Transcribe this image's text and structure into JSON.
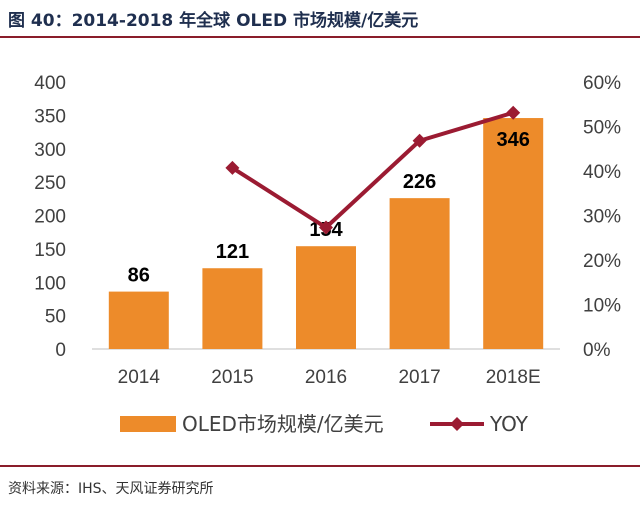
{
  "header": {
    "title": "图 40：2014-2018 年全球 OLED 市场规模/亿美元"
  },
  "footer": {
    "source": "资料来源：IHS、天风证券研究所"
  },
  "colors": {
    "bar": "#ED8B2A",
    "line": "#9B1B32",
    "rule": "#8A1D2A"
  },
  "chart_data": {
    "type": "bar",
    "categories": [
      "2014",
      "2015",
      "2016",
      "2017",
      "2018E"
    ],
    "series": [
      {
        "name": "OLED市场规模/亿美元",
        "type": "bar",
        "axis": "left",
        "values": [
          86,
          121,
          154,
          226,
          346
        ],
        "labels": [
          "86",
          "121",
          "154",
          "226",
          "346"
        ]
      },
      {
        "name": "YOY",
        "type": "line",
        "axis": "right",
        "values": [
          null,
          0.407,
          0.273,
          0.468,
          0.531
        ]
      }
    ],
    "yleft": {
      "lim": [
        0,
        400
      ],
      "ticks": [
        "0",
        "50",
        "100",
        "150",
        "200",
        "250",
        "300",
        "350",
        "400"
      ]
    },
    "yright": {
      "lim": [
        0,
        0.6
      ],
      "ticks": [
        "0%",
        "10%",
        "20%",
        "30%",
        "40%",
        "50%",
        "60%"
      ]
    },
    "grid": false,
    "legend": "bottom"
  }
}
